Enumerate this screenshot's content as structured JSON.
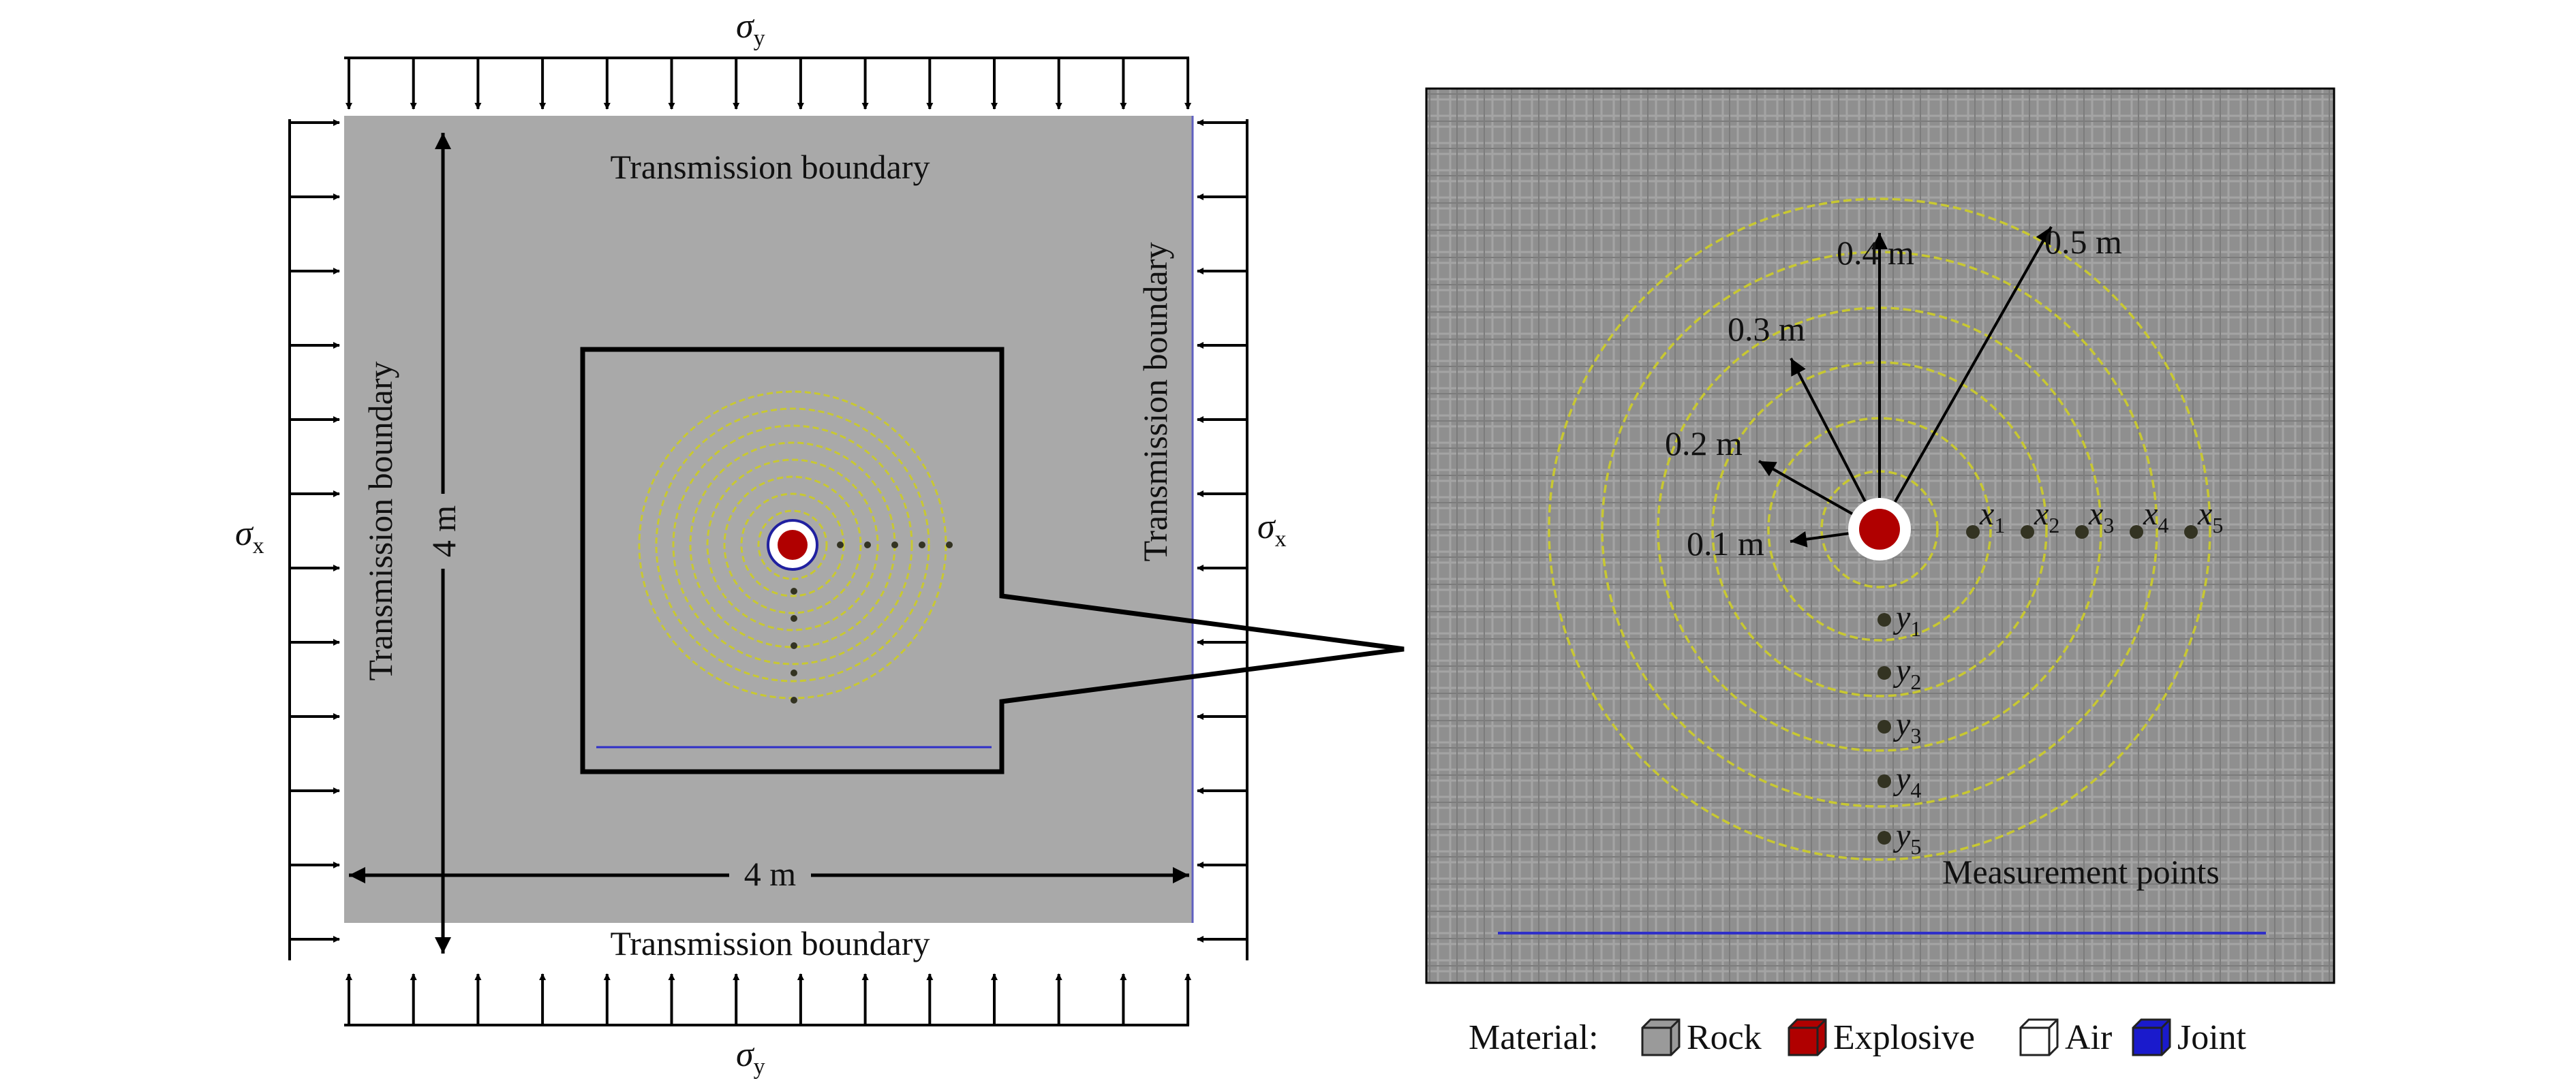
{
  "left_panel": {
    "sigma_y_top": {
      "base": "σ",
      "sub": "y"
    },
    "sigma_y_bottom": {
      "base": "σ",
      "sub": "y"
    },
    "sigma_x_left": {
      "base": "σ",
      "sub": "x"
    },
    "sigma_x_right": {
      "base": "σ",
      "sub": "x"
    },
    "boundary_top": "Transmission boundary",
    "boundary_bottom": "Transmission boundary",
    "boundary_left": "Transmission boundary",
    "boundary_right": "Transmission boundary",
    "dim_width": "4 m",
    "dim_height": "4 m"
  },
  "right_panel": {
    "radius_labels": [
      "0.1 m",
      "0.2 m",
      "0.3 m",
      "0.4 m",
      "0.5 m"
    ],
    "x_points": [
      {
        "base": "x",
        "sub": "1"
      },
      {
        "base": "x",
        "sub": "2"
      },
      {
        "base": "x",
        "sub": "3"
      },
      {
        "base": "x",
        "sub": "4"
      },
      {
        "base": "x",
        "sub": "5"
      }
    ],
    "y_points": [
      {
        "base": "y",
        "sub": "1"
      },
      {
        "base": "y",
        "sub": "2"
      },
      {
        "base": "y",
        "sub": "3"
      },
      {
        "base": "y",
        "sub": "4"
      },
      {
        "base": "y",
        "sub": "5"
      }
    ],
    "measurement_label": "Measurement points"
  },
  "legend": {
    "title": "Material:",
    "items": [
      {
        "label": "Rock",
        "color": "#9a9a9a"
      },
      {
        "label": "Explosive",
        "color": "#b00000"
      },
      {
        "label": "Air",
        "color": "#ffffff"
      },
      {
        "label": "Joint",
        "color": "#1a1acc"
      }
    ]
  },
  "colors": {
    "rock": "#a9a9a9",
    "rock_zoom": "#8e8e8e",
    "ring": "#c8c832",
    "explosive": "#b00000",
    "joint": "#2a2ad0",
    "point": "#333322"
  }
}
